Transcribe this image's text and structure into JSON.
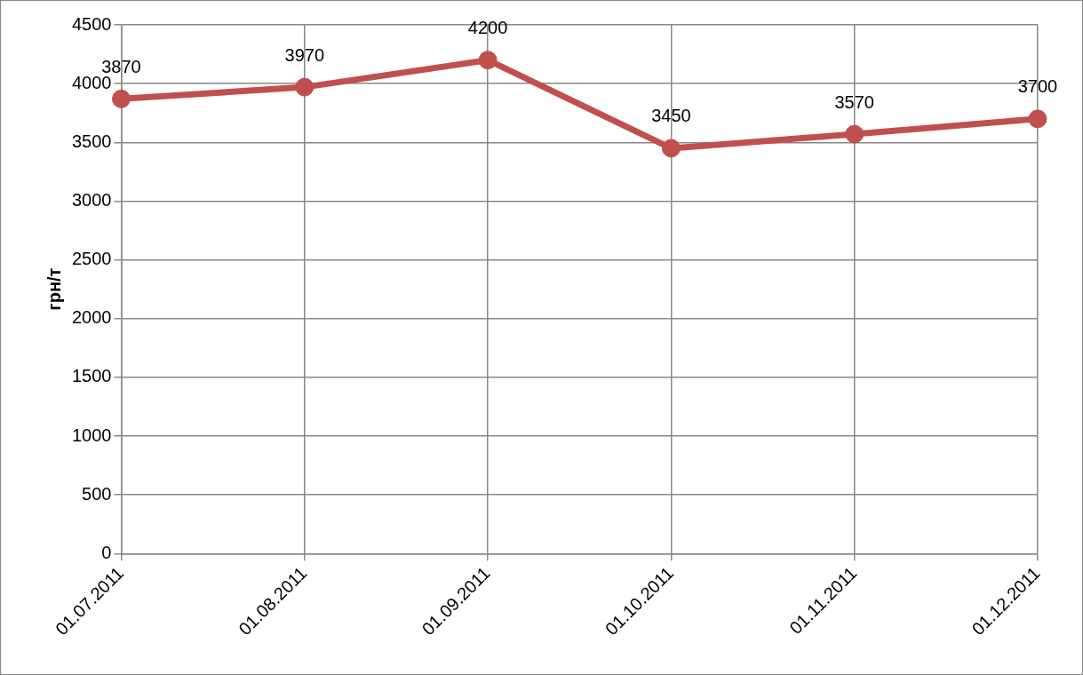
{
  "chart_data": {
    "type": "line",
    "ylabel": "грн/т",
    "categories": [
      "01.07.2011",
      "01.08.2011",
      "01.09.2011",
      "01.10.2011",
      "01.11.2011",
      "01.12.2011"
    ],
    "series": [
      {
        "color": "#c0504d",
        "values": [
          3870,
          3970,
          4200,
          3450,
          3570,
          3700
        ]
      }
    ],
    "ylim": [
      0,
      4500
    ],
    "yticks": [
      0,
      500,
      1000,
      1500,
      2000,
      2500,
      3000,
      3500,
      4000,
      4500
    ],
    "grid": true,
    "legend": false,
    "marker": "circle",
    "line_style": "solid",
    "data_labels": true
  }
}
